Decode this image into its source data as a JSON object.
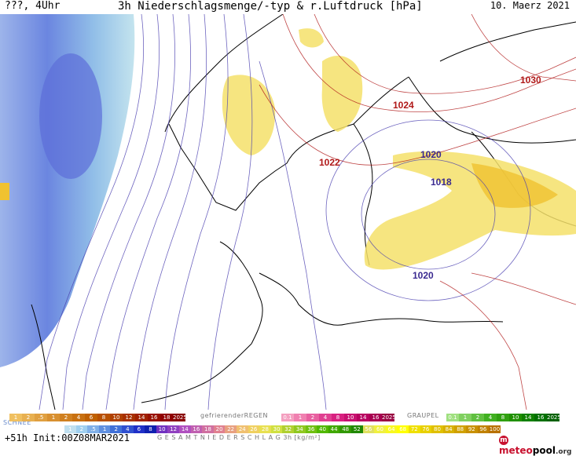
{
  "header": {
    "left": "???, 4Uhr",
    "title": "3h Niederschlagsmenge/-typ & r.Luftdruck [hPa]",
    "date": "10. Maerz 2021"
  },
  "isobars": [
    {
      "label": "1030",
      "color": "#b01818"
    },
    {
      "label": "1024",
      "color": "#b01818"
    },
    {
      "label": "1022",
      "color": "#b01818"
    },
    {
      "label": "1020",
      "color": "#3a2a90"
    },
    {
      "label": "1018",
      "color": "#3a2a90"
    },
    {
      "label": "1020",
      "color": "#3a2a90"
    }
  ],
  "legend": {
    "snow_title": "SCHNEE",
    "snow_scale": [
      "1",
      "2",
      ".5",
      "1",
      "2",
      "4",
      "6",
      "8",
      "10",
      "12",
      "14",
      "16",
      "18",
      "2025+"
    ],
    "rain_title": "gefrierenderREGEN",
    "rain_scale": [
      "0.1",
      "1",
      "2",
      "4",
      "8",
      "10",
      "14",
      "16",
      "2025+"
    ],
    "graupel_title": "GRAUPEL",
    "graupel_scale": [
      "0.1",
      "1",
      "2",
      "4",
      "8",
      "10",
      "14",
      "16",
      "2025+"
    ],
    "total_title": "G E S A M T N I E D E R S C H L A G   3h  [kg/m²]",
    "total_scale": [
      "1",
      "2",
      ".5",
      "1",
      "2",
      "4",
      "6",
      "8",
      "10",
      "12",
      "14",
      "16",
      "18",
      "20",
      "22",
      "24",
      "26",
      "28",
      "30",
      "32",
      "34",
      "36",
      "40",
      "44",
      "48",
      "52",
      "56",
      "60",
      "64",
      "68",
      "72",
      "76",
      "80",
      "84",
      "88",
      "92",
      "96",
      "100"
    ]
  },
  "footer": {
    "run": "+51h Init:00Z08MAR2021",
    "logo_brand": "meteo",
    "logo_text": "pool",
    "logo_tld": ".org"
  },
  "colors": {
    "snow_light": "#bfe0ef",
    "snow_mid": "#7fa9e6",
    "snow_dark": "#5a6fd8",
    "rain_yellow": "#f5e06a",
    "rain_orange": "#f0c230",
    "isobar_red": "#b01818",
    "isobar_blue": "#4a3fb0"
  }
}
